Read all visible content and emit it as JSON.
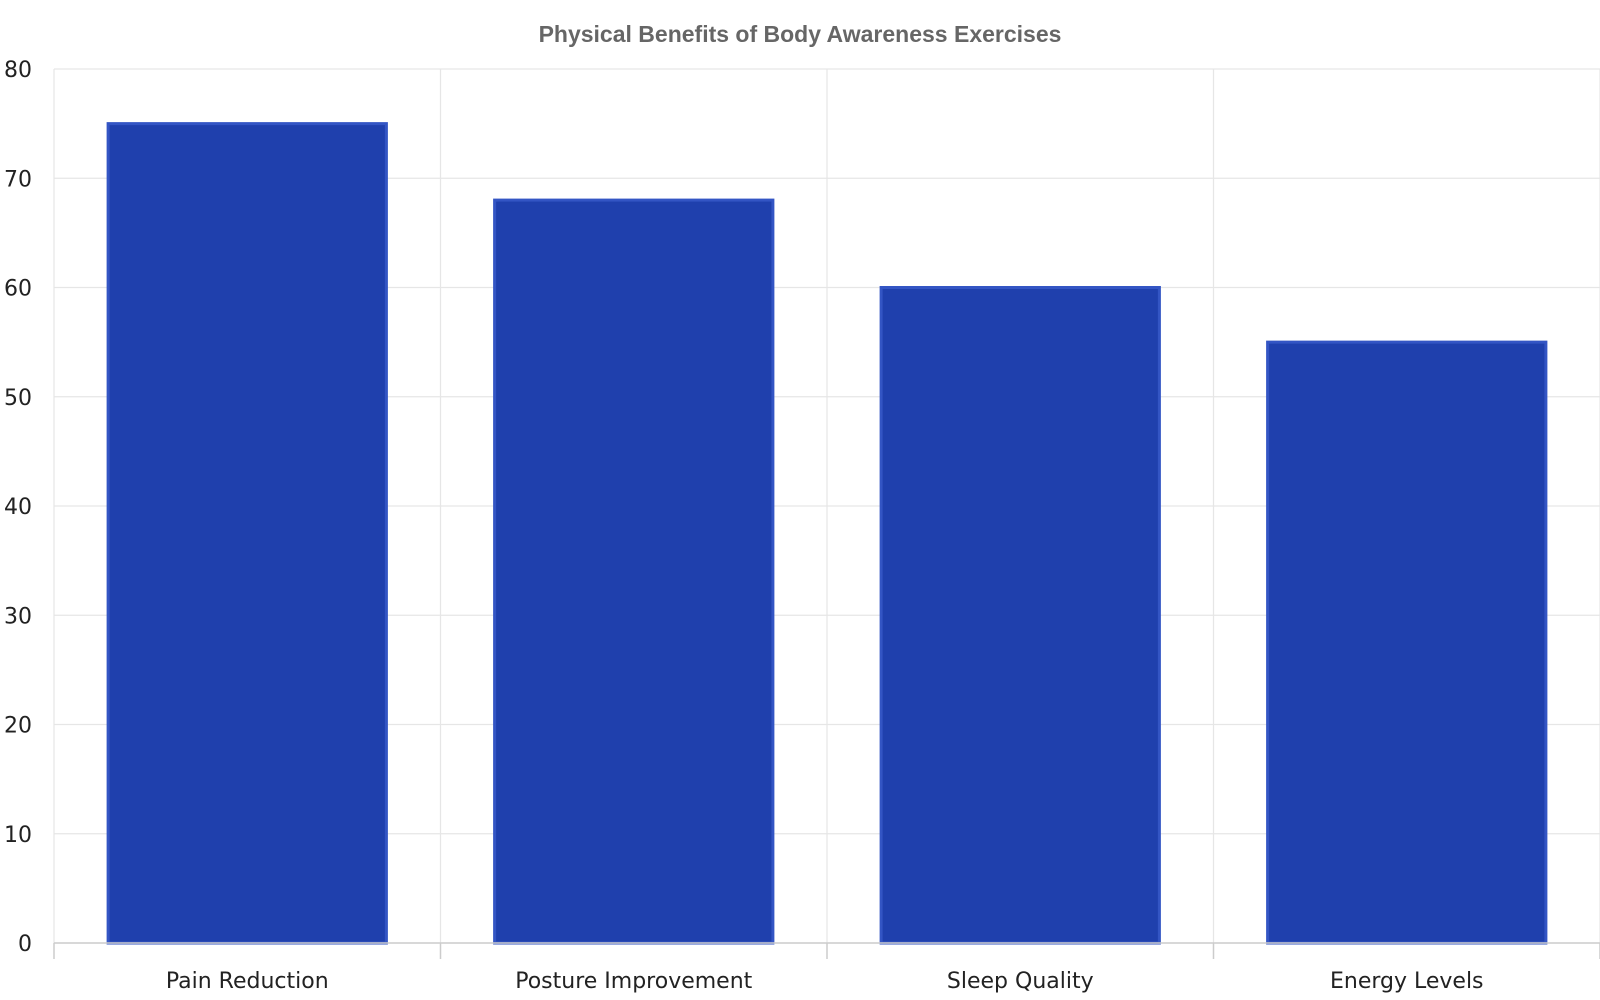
{
  "chart_data": {
    "type": "bar",
    "title": "Physical Benefits of Body Awareness Exercises",
    "xlabel": "",
    "ylabel": "",
    "categories": [
      "Pain Reduction",
      "Posture Improvement",
      "Sleep Quality",
      "Energy Levels"
    ],
    "values": [
      75,
      68,
      60,
      55
    ],
    "ylim": [
      0,
      80
    ],
    "yticks": [
      0,
      10,
      20,
      30,
      40,
      50,
      60,
      70,
      80
    ],
    "grid": true,
    "legend": "none",
    "colors": {
      "bar_fill": "#1f40ad",
      "bar_stroke": "#3355c4",
      "title": "#666666",
      "tick_label": "#222222",
      "grid": "#e6e6e6",
      "axis": "#cccccc"
    }
  }
}
